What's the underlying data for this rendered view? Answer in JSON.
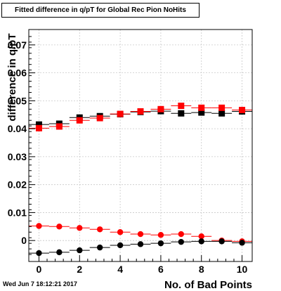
{
  "chart_data": {
    "type": "scatter",
    "title": "Fitted difference in q/pT for Global Rec Pion NoHits",
    "xlabel": "No. of Bad Points",
    "ylabel": "difference in q/pT",
    "xlim": [
      -0.5,
      10.5
    ],
    "ylim": [
      -0.0075,
      0.0755
    ],
    "x_ticks": [
      0,
      2,
      4,
      6,
      8,
      10
    ],
    "y_ticks": [
      0,
      0.01,
      0.02,
      0.03,
      0.04,
      0.05,
      0.06,
      0.07
    ],
    "y_tick_labels": [
      "0",
      "0.01",
      "0.02",
      "0.03",
      "0.04",
      "0.05",
      "0.06",
      "0.07"
    ],
    "grid": true,
    "x": [
      0,
      1,
      2,
      3,
      4,
      5,
      6,
      7,
      8,
      9,
      10
    ],
    "series": [
      {
        "marker": "square",
        "color": "#000000",
        "values": [
          0.0415,
          0.0418,
          0.044,
          0.0445,
          0.0452,
          0.046,
          0.0463,
          0.0455,
          0.0458,
          0.0455,
          0.0462
        ]
      },
      {
        "marker": "square",
        "color": "#ff0000",
        "values": [
          0.0402,
          0.0408,
          0.043,
          0.0438,
          0.0453,
          0.0462,
          0.047,
          0.0482,
          0.0475,
          0.0475,
          0.0467
        ]
      },
      {
        "marker": "circle",
        "color": "#ff0000",
        "values": [
          0.0052,
          0.005,
          0.0045,
          0.004,
          0.003,
          0.0023,
          0.002,
          0.0023,
          0.0015,
          0.0,
          -0.0003
        ]
      },
      {
        "marker": "circle",
        "color": "#000000",
        "values": [
          -0.0045,
          -0.0042,
          -0.0035,
          -0.0025,
          -0.0017,
          -0.0013,
          -0.001,
          -0.0005,
          -0.0003,
          -0.0003,
          -0.0008
        ]
      }
    ]
  },
  "footer": {
    "datestamp": "Wed Jun  7 18:12:21 2017"
  },
  "colors": {
    "frame": "#000000",
    "grid": "#c8c8c8",
    "background": "#ffffff"
  }
}
